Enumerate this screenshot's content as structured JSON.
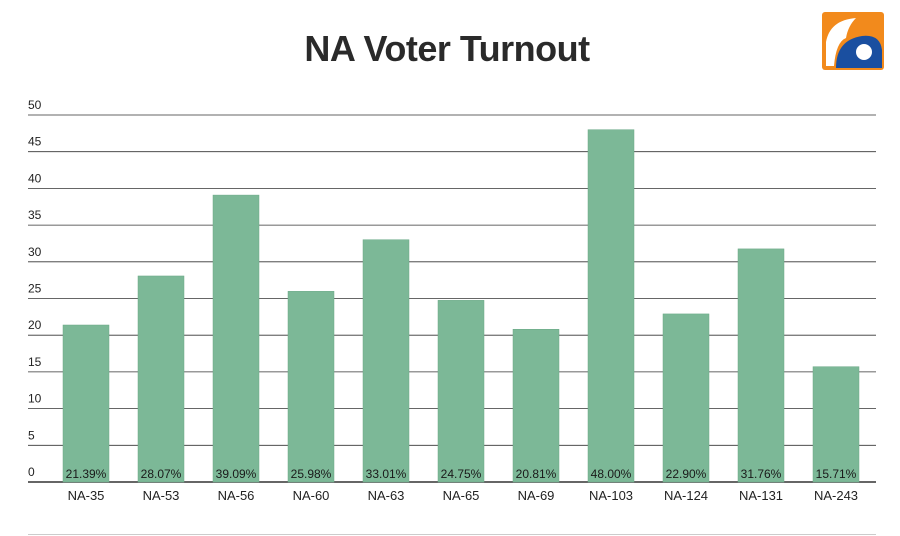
{
  "header": {
    "title": "NA Voter Turnout",
    "logo_icon": "geo-news-logo-icon"
  },
  "colors": {
    "bar": "#7cb897",
    "grid": "#333333",
    "text": "#222222",
    "logo_orange": "#f28a1c",
    "logo_blue": "#1a4fa0"
  },
  "chart_data": {
    "type": "bar",
    "title": "NA Voter Turnout",
    "xlabel": "",
    "ylabel": "",
    "ylim": [
      0,
      50
    ],
    "yticks": [
      0,
      5,
      10,
      15,
      20,
      25,
      30,
      35,
      40,
      45,
      50
    ],
    "grid": true,
    "categories": [
      "NA-35",
      "NA-53",
      "NA-56",
      "NA-60",
      "NA-63",
      "NA-65",
      "NA-69",
      "NA-103",
      "NA-124",
      "NA-131",
      "NA-243"
    ],
    "values": [
      21.39,
      28.07,
      39.09,
      25.98,
      33.01,
      24.75,
      20.81,
      48.0,
      22.9,
      31.76,
      15.71
    ],
    "data_labels": [
      "21.39%",
      "28.07%",
      "39.09%",
      "25.98%",
      "33.01%",
      "24.75%",
      "20.81%",
      "48.00%",
      "22.90%",
      "31.76%",
      "15.71%"
    ]
  }
}
